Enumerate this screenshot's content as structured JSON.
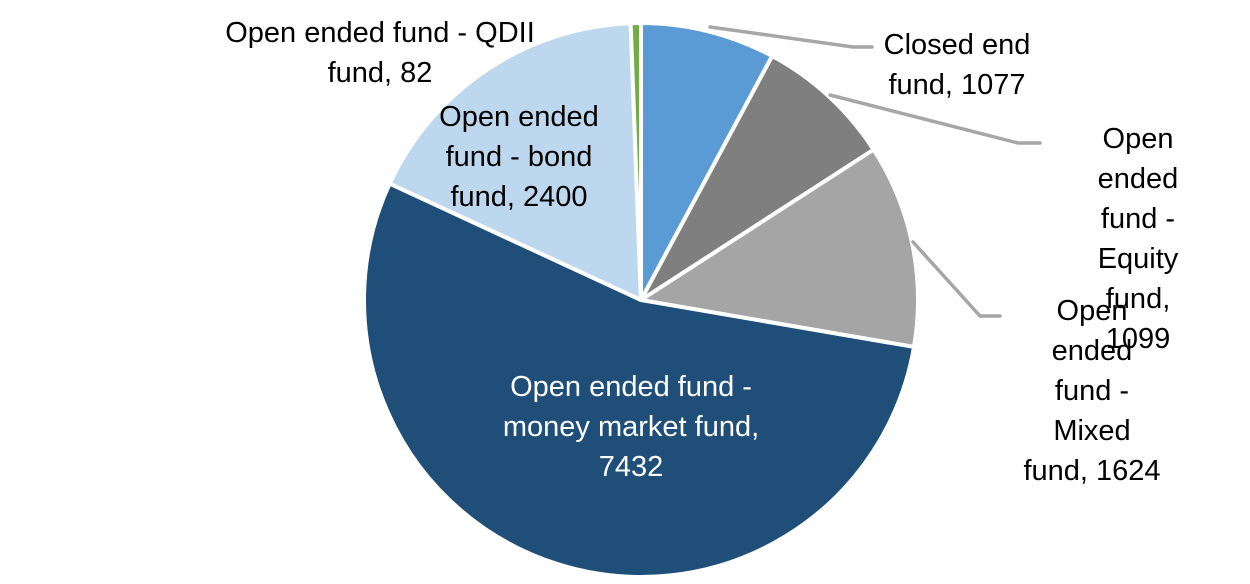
{
  "chart_data": {
    "type": "pie",
    "title": "",
    "total": 13714,
    "start_angle_deg": 0,
    "direction": "clockwise",
    "legend_position": "none",
    "background_color": "#FFFFFF",
    "slice_border_color": "#FFFFFF",
    "leader_line_color": "#A6A6A6",
    "data_label_style": "category-name-and-value",
    "segments": [
      {
        "name": "Closed end fund",
        "value": 1077,
        "color": "#5B9BD5",
        "label_text": "Closed end\nfund, 1077",
        "label_color": "#000000",
        "label_position": "outside-top-right",
        "has_leader_line": true
      },
      {
        "name": "Open ended fund - Equity fund",
        "value": 1099,
        "color": "#7F7F7F",
        "label_text": "Open ended\nfund - Equity\nfund, 1099",
        "label_color": "#000000",
        "label_position": "outside-right",
        "has_leader_line": true
      },
      {
        "name": "Open ended fund - Mixed fund",
        "value": 1624,
        "color": "#A5A5A5",
        "label_text": "Open ended\nfund - Mixed\nfund, 1624",
        "label_color": "#000000",
        "label_position": "outside-lower-right",
        "has_leader_line": true
      },
      {
        "name": "Open ended fund - money market fund",
        "value": 7432,
        "color": "#1F4E79",
        "label_text": "Open ended fund -\nmoney market fund,\n7432",
        "label_color": "#FFFFFF",
        "label_position": "inside",
        "has_leader_line": false
      },
      {
        "name": "Open ended fund - bond fund",
        "value": 2400,
        "color": "#BDD7EE",
        "label_text": "Open ended\nfund - bond\nfund, 2400",
        "label_color": "#000000",
        "label_position": "outside-upper-left",
        "has_leader_line": false
      },
      {
        "name": "Open ended fund - QDII fund",
        "value": 82,
        "color": "#70AD47",
        "label_text": "Open ended fund - QDII\nfund, 82",
        "label_color": "#000000",
        "label_position": "outside-top-left",
        "has_leader_line": false
      }
    ]
  }
}
